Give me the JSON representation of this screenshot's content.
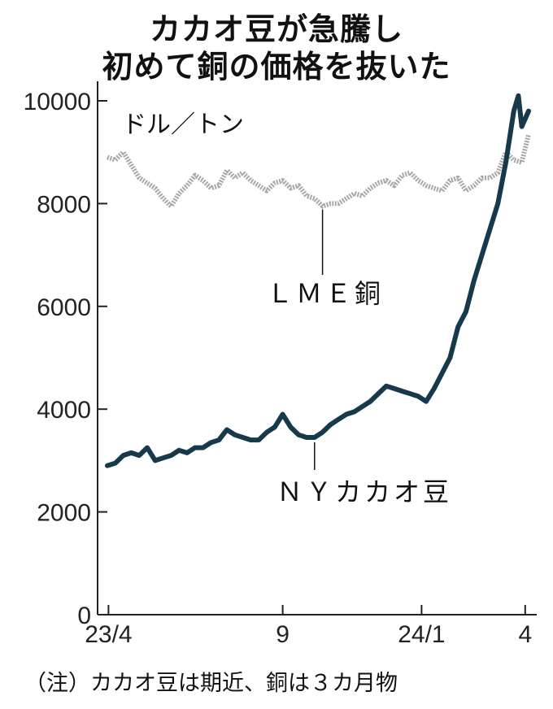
{
  "title_line1": "カカオ豆が急騰し",
  "title_line2": "初めて銅の価格を抜いた",
  "unit_label": "ドル／トン",
  "note": "（注）カカオ豆は期近、銅は３カ月物",
  "chart_data": {
    "type": "line",
    "x_ticks": [
      "23/4",
      "9",
      "24/1",
      "4"
    ],
    "x_tick_dates": [
      "2023-04-01",
      "2023-09-01",
      "2024-01-01",
      "2024-04-01"
    ],
    "x_range": [
      "2023-03-31",
      "2024-04-04"
    ],
    "yticks": [
      0,
      2000,
      4000,
      6000,
      8000,
      10000
    ],
    "ylim": [
      0,
      10000
    ],
    "grid": false,
    "series": [
      {
        "name": "ＬＭＥ銅",
        "color": "#a8a8a8",
        "points": [
          [
            "2023-03-31",
            8900
          ],
          [
            "2023-04-07",
            8850
          ],
          [
            "2023-04-14",
            9000
          ],
          [
            "2023-04-21",
            8750
          ],
          [
            "2023-04-28",
            8500
          ],
          [
            "2023-05-05",
            8400
          ],
          [
            "2023-05-12",
            8300
          ],
          [
            "2023-05-19",
            8100
          ],
          [
            "2023-05-26",
            7950
          ],
          [
            "2023-06-02",
            8200
          ],
          [
            "2023-06-09",
            8350
          ],
          [
            "2023-06-16",
            8550
          ],
          [
            "2023-06-23",
            8450
          ],
          [
            "2023-06-30",
            8300
          ],
          [
            "2023-07-07",
            8350
          ],
          [
            "2023-07-14",
            8650
          ],
          [
            "2023-07-21",
            8500
          ],
          [
            "2023-07-28",
            8600
          ],
          [
            "2023-08-04",
            8450
          ],
          [
            "2023-08-11",
            8350
          ],
          [
            "2023-08-18",
            8250
          ],
          [
            "2023-08-25",
            8400
          ],
          [
            "2023-09-01",
            8450
          ],
          [
            "2023-09-08",
            8300
          ],
          [
            "2023-09-15",
            8350
          ],
          [
            "2023-09-22",
            8150
          ],
          [
            "2023-09-29",
            8100
          ],
          [
            "2023-10-06",
            7950
          ],
          [
            "2023-10-13",
            8000
          ],
          [
            "2023-10-20",
            8000
          ],
          [
            "2023-10-27",
            8100
          ],
          [
            "2023-11-03",
            8200
          ],
          [
            "2023-11-10",
            8150
          ],
          [
            "2023-11-17",
            8300
          ],
          [
            "2023-11-24",
            8400
          ],
          [
            "2023-12-01",
            8450
          ],
          [
            "2023-12-08",
            8350
          ],
          [
            "2023-12-15",
            8550
          ],
          [
            "2023-12-22",
            8600
          ],
          [
            "2023-12-29",
            8450
          ],
          [
            "2024-01-05",
            8350
          ],
          [
            "2024-01-12",
            8300
          ],
          [
            "2024-01-19",
            8250
          ],
          [
            "2024-01-26",
            8450
          ],
          [
            "2024-02-02",
            8500
          ],
          [
            "2024-02-09",
            8250
          ],
          [
            "2024-02-16",
            8350
          ],
          [
            "2024-02-23",
            8500
          ],
          [
            "2024-03-01",
            8500
          ],
          [
            "2024-03-08",
            8600
          ],
          [
            "2024-03-15",
            9000
          ],
          [
            "2024-03-22",
            8850
          ],
          [
            "2024-03-29",
            8800
          ],
          [
            "2024-04-04",
            9350
          ]
        ]
      },
      {
        "name": "ＮＹカカオ豆",
        "color": "#163a4c",
        "points": [
          [
            "2023-03-31",
            2900
          ],
          [
            "2023-04-07",
            2950
          ],
          [
            "2023-04-14",
            3100
          ],
          [
            "2023-04-21",
            3150
          ],
          [
            "2023-04-28",
            3100
          ],
          [
            "2023-05-05",
            3250
          ],
          [
            "2023-05-12",
            3000
          ],
          [
            "2023-05-19",
            3050
          ],
          [
            "2023-05-26",
            3100
          ],
          [
            "2023-06-02",
            3200
          ],
          [
            "2023-06-09",
            3150
          ],
          [
            "2023-06-16",
            3250
          ],
          [
            "2023-06-23",
            3250
          ],
          [
            "2023-06-30",
            3350
          ],
          [
            "2023-07-07",
            3400
          ],
          [
            "2023-07-14",
            3600
          ],
          [
            "2023-07-21",
            3500
          ],
          [
            "2023-07-28",
            3450
          ],
          [
            "2023-08-04",
            3400
          ],
          [
            "2023-08-11",
            3400
          ],
          [
            "2023-08-18",
            3550
          ],
          [
            "2023-08-25",
            3650
          ],
          [
            "2023-09-01",
            3900
          ],
          [
            "2023-09-08",
            3650
          ],
          [
            "2023-09-15",
            3500
          ],
          [
            "2023-09-22",
            3450
          ],
          [
            "2023-09-29",
            3450
          ],
          [
            "2023-10-06",
            3550
          ],
          [
            "2023-10-13",
            3700
          ],
          [
            "2023-10-20",
            3800
          ],
          [
            "2023-10-27",
            3900
          ],
          [
            "2023-11-03",
            3950
          ],
          [
            "2023-11-10",
            4050
          ],
          [
            "2023-11-17",
            4150
          ],
          [
            "2023-11-24",
            4300
          ],
          [
            "2023-12-01",
            4450
          ],
          [
            "2023-12-08",
            4400
          ],
          [
            "2023-12-15",
            4350
          ],
          [
            "2023-12-22",
            4300
          ],
          [
            "2023-12-29",
            4250
          ],
          [
            "2024-01-05",
            4150
          ],
          [
            "2024-01-12",
            4400
          ],
          [
            "2024-01-19",
            4700
          ],
          [
            "2024-01-26",
            5000
          ],
          [
            "2024-02-02",
            5600
          ],
          [
            "2024-02-09",
            5900
          ],
          [
            "2024-02-16",
            6500
          ],
          [
            "2024-02-23",
            7000
          ],
          [
            "2024-03-01",
            7500
          ],
          [
            "2024-03-08",
            8000
          ],
          [
            "2024-03-15",
            8800
          ],
          [
            "2024-03-22",
            9800
          ],
          [
            "2024-03-26",
            10100
          ],
          [
            "2024-03-29",
            9500
          ],
          [
            "2024-04-04",
            9800
          ]
        ]
      }
    ]
  }
}
